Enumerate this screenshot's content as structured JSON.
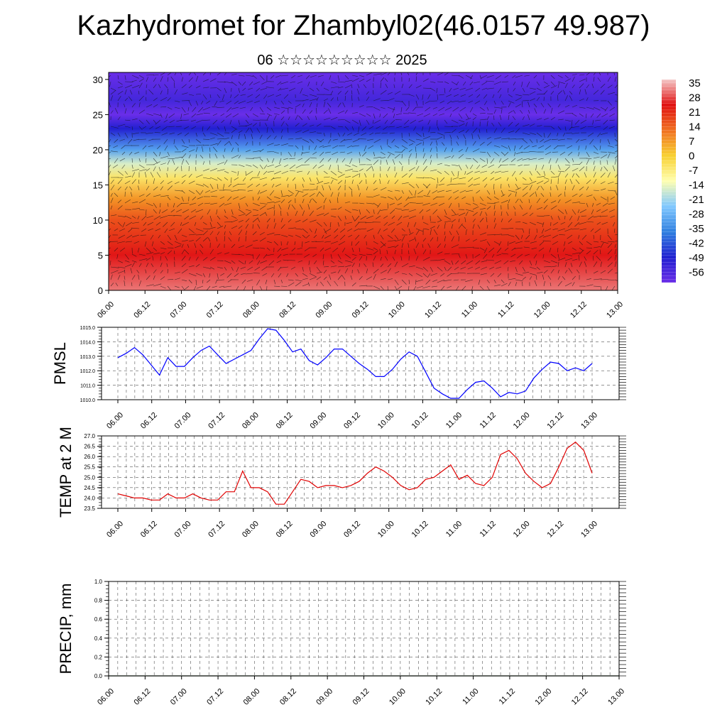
{
  "header": {
    "title": "Kazhydromet for Zhambyl02(46.0157 49.987)",
    "subtitle": "06 ☆☆☆☆☆☆☆☆☆ 2025"
  },
  "colors": {
    "pmsl_line": "#0000ff",
    "temp_line": "#e00000",
    "precip_line": "#1a3a1a",
    "colormap": [
      "#f4c7c7",
      "#e01010",
      "#f07020",
      "#f8d030",
      "#ffffb0",
      "#80c8ff",
      "#3080e0",
      "#2020d0",
      "#6a2ee8"
    ]
  },
  "chart_data": [
    {
      "type": "heatmap",
      "name": "cross-section",
      "x_tick_labels": [
        "06.00",
        "06.12",
        "07.00",
        "07.12",
        "08.00",
        "08.12",
        "09.00",
        "09.12",
        "10.00",
        "10.12",
        "11.00",
        "11.12",
        "12.00",
        "12.12",
        "13.00"
      ],
      "y_tick_labels": [
        "0",
        "5",
        "10",
        "15",
        "20",
        "25",
        "30"
      ],
      "ylim": [
        0,
        31
      ],
      "colorbar_labels": [
        "35",
        "28",
        "21",
        "14",
        "7",
        "0",
        "-7",
        "-14",
        "-21",
        "-28",
        "-35",
        "-42",
        "-49",
        "-56"
      ],
      "profile": [
        {
          "level": 0,
          "value": 30
        },
        {
          "level": 5,
          "value": 24
        },
        {
          "level": 10,
          "value": 16
        },
        {
          "level": 13,
          "value": 8
        },
        {
          "level": 16,
          "value": -4
        },
        {
          "level": 18,
          "value": -14
        },
        {
          "level": 20,
          "value": -28
        },
        {
          "level": 23,
          "value": -45
        },
        {
          "level": 25,
          "value": -56
        },
        {
          "level": 27,
          "value": -50
        },
        {
          "level": 31,
          "value": -56
        }
      ],
      "overlay": "wind barbs"
    },
    {
      "type": "line",
      "name": "pmsl",
      "ylabel": "PMSL",
      "x_tick_labels": [
        "06.00",
        "06.12",
        "07.00",
        "07.12",
        "08.00",
        "08.12",
        "09.00",
        "09.12",
        "10.00",
        "10.12",
        "11.00",
        "11.12",
        "12.00",
        "12.12",
        "13.00"
      ],
      "y_tick_labels": [
        "1010.0",
        "1011.0",
        "1012.0",
        "1013.0",
        "1014.0",
        "1015.0"
      ],
      "ylim": [
        1010,
        1015
      ],
      "values": [
        1012.9,
        1013.2,
        1013.6,
        1013.1,
        1012.4,
        1011.7,
        1012.9,
        1012.3,
        1012.3,
        1012.9,
        1013.4,
        1013.7,
        1013.1,
        1012.5,
        1012.8,
        1013.1,
        1013.4,
        1014.2,
        1014.9,
        1014.8,
        1014.1,
        1013.3,
        1013.5,
        1012.7,
        1012.4,
        1012.9,
        1013.5,
        1013.5,
        1013.0,
        1012.5,
        1012.1,
        1011.6,
        1011.6,
        1012.1,
        1012.8,
        1013.3,
        1013.0,
        1011.9,
        1010.8,
        1010.4,
        1010.1,
        1010.1,
        1010.7,
        1011.2,
        1011.3,
        1010.8,
        1010.2,
        1010.5,
        1010.4,
        1010.6,
        1011.5,
        1012.1,
        1012.6,
        1012.5,
        1012.0,
        1012.2,
        1012.0,
        1012.5
      ]
    },
    {
      "type": "line",
      "name": "temperature",
      "ylabel": "TEMP at 2 M",
      "x_tick_labels": [
        "06.00",
        "06.12",
        "07.00",
        "07.12",
        "08.00",
        "08.12",
        "09.00",
        "09.12",
        "10.00",
        "10.12",
        "11.00",
        "11.12",
        "12.00",
        "12.12",
        "13.00"
      ],
      "y_tick_labels": [
        "23.5",
        "24.0",
        "24.5",
        "25.0",
        "25.5",
        "26.0",
        "26.5",
        "27.0"
      ],
      "ylim": [
        23.5,
        27.0
      ],
      "values": [
        24.2,
        24.1,
        24.0,
        24.0,
        23.9,
        23.9,
        24.2,
        24.0,
        24.0,
        24.2,
        24.0,
        23.9,
        23.9,
        24.3,
        24.3,
        25.3,
        24.5,
        24.5,
        24.3,
        23.7,
        23.7,
        24.3,
        24.9,
        24.8,
        24.5,
        24.6,
        24.6,
        24.5,
        24.6,
        24.8,
        25.2,
        25.5,
        25.3,
        25.0,
        24.6,
        24.4,
        24.5,
        24.9,
        25.0,
        25.3,
        25.6,
        24.9,
        25.1,
        24.7,
        24.6,
        25.0,
        26.1,
        26.3,
        25.9,
        25.2,
        24.8,
        24.5,
        24.7,
        25.5,
        26.4,
        26.7,
        26.3,
        25.2
      ]
    },
    {
      "type": "line",
      "name": "precipitation",
      "ylabel": "PRECIP, mm",
      "x_tick_labels": [
        "06.00",
        "06.12",
        "07.00",
        "07.12",
        "08.00",
        "08.12",
        "09.00",
        "09.12",
        "10.00",
        "10.12",
        "11.00",
        "11.12",
        "12.00",
        "12.12",
        "13.00"
      ],
      "y_tick_labels": [
        "0.0",
        "0.2",
        "0.4",
        "0.6",
        "0.8",
        "1.0"
      ],
      "ylim": [
        0,
        1
      ],
      "values": [
        0,
        0,
        0,
        0,
        0,
        0,
        0,
        0,
        0,
        0,
        0,
        0,
        0,
        0,
        0,
        0,
        0,
        0,
        0,
        0,
        0,
        0,
        0,
        0,
        0,
        0,
        0,
        0,
        0,
        0,
        0,
        0,
        0,
        0,
        0,
        0,
        0,
        0,
        0,
        0,
        0,
        0,
        0,
        0,
        0,
        0,
        0,
        0,
        0,
        0,
        0,
        0,
        0,
        0,
        0,
        0,
        0,
        0
      ]
    }
  ]
}
